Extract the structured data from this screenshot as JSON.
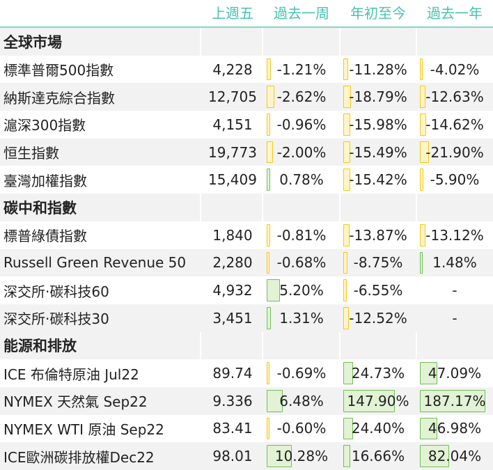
{
  "headers": [
    "上週五",
    "過去一周",
    "年初至今",
    "過去一年"
  ],
  "colors": {
    "header": "#47c2b1",
    "neg_bar": "#f2c81a",
    "pos_bar": "#6fbf55"
  },
  "sections": [
    {
      "title": "全球市場",
      "rows": [
        {
          "name": "標準普爾500指數",
          "last": "4,228",
          "week": "-1.21%",
          "ytd": "-11.28%",
          "year": "-4.02%"
        },
        {
          "name": "納斯達克綜合指數",
          "last": "12,705",
          "week": "-2.62%",
          "ytd": "-18.79%",
          "year": "-12.63%"
        },
        {
          "name": "滬深300指數",
          "last": "4,151",
          "week": "-0.96%",
          "ytd": "-15.98%",
          "year": "-14.62%"
        },
        {
          "name": "恒生指數",
          "last": "19,773",
          "week": "-2.00%",
          "ytd": "-15.49%",
          "year": "-21.90%"
        },
        {
          "name": "臺灣加權指數",
          "last": "15,409",
          "week": "0.78%",
          "ytd": "-15.42%",
          "year": "-5.90%"
        }
      ]
    },
    {
      "title": "碳中和指數",
      "rows": [
        {
          "name": "標普綠債指數",
          "last": "1,840",
          "week": "-0.81%",
          "ytd": "-13.87%",
          "year": "-13.12%"
        },
        {
          "name": "Russell Green Revenue 50",
          "last": "2,280",
          "week": "-0.68%",
          "ytd": "-8.75%",
          "year": "1.48%"
        },
        {
          "name": "深交所·碳科技60",
          "last": "4,932",
          "week": "5.20%",
          "ytd": "-6.55%",
          "year": "-"
        },
        {
          "name": "深交所·碳科技30",
          "last": "3,451",
          "week": "1.31%",
          "ytd": "-12.52%",
          "year": "-"
        }
      ]
    },
    {
      "title": "能源和排放",
      "rows": [
        {
          "name": "ICE 布倫特原油 Jul22",
          "last": "89.74",
          "week": "-0.69%",
          "ytd": "24.73%",
          "year": "47.09%"
        },
        {
          "name": "NYMEX 天然氣 Sep22",
          "last": "9.336",
          "week": "6.48%",
          "ytd": "147.90%",
          "year": "187.17%"
        },
        {
          "name": "NYMEX WTI 原油 Sep22",
          "last": "83.41",
          "week": "-0.60%",
          "ytd": "24.40%",
          "year": "46.98%"
        },
        {
          "name": "ICE歐洲碳排放權Dec22",
          "last": "98.01",
          "week": "10.28%",
          "ytd": "16.66%",
          "year": "82.04%"
        }
      ]
    }
  ]
}
